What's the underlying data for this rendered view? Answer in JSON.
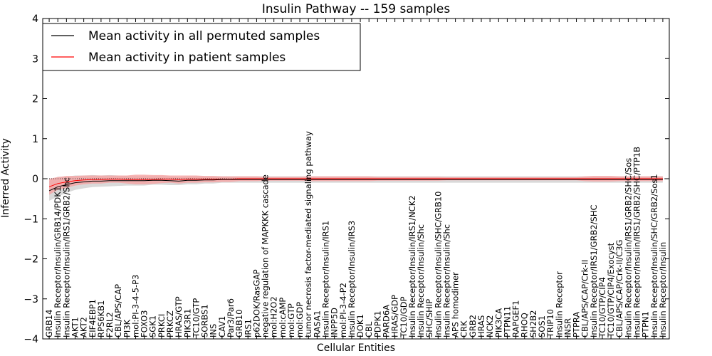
{
  "chart_data": {
    "type": "line",
    "title": "Insulin Pathway -- 159 samples",
    "xlabel": "Cellular Entities",
    "ylabel": "Inferred Activity",
    "ylim": [
      -4,
      4
    ],
    "yticks": [
      "4",
      "3",
      "2",
      "1",
      "0",
      "−1",
      "−2",
      "−3",
      "−4"
    ],
    "grid": false,
    "legend_position": "top-left",
    "categories": [
      "GRB14",
      "Insulin Receptor/Insulin/GRB14/PDK1",
      "Insulin Receptor/Insulin/IRS1/GRB2/Shc",
      "AKT1",
      "AKT2",
      "EIF4EBP1",
      "RPS6KB1",
      "F2RL2",
      "CBL/APS/CAP",
      "PI3K",
      "mol:PI-3-4-5-P3",
      "FOXO3",
      "SGK1",
      "PRKCI",
      "PRKCZ",
      "HRAS/GTP",
      "PIK3R1",
      "TC10/GTP",
      "SORBS1",
      "INS",
      "CAV1",
      "Par3/Par6",
      "GRB10",
      "IRS1",
      "p62DOK/RasGAP",
      "negative regulation of MAPKKK cascade",
      "mol:H2O2",
      "mol:cAMP",
      "mol:GTP",
      "mol:GDP",
      "tumor necrosis factor-mediated signaling pathway",
      "RASA1",
      "Insulin Receptor/Insulin/IRS1",
      "INPP5D",
      "mol:PI-3-4-P2",
      "Insulin Receptor/Insulin/IRS3",
      "DOK1",
      "CBL",
      "PDPK1",
      "PARD6A",
      "HRAS/GDP",
      "TC10/GDP",
      "Insulin Receptor/Insulin/IRS1/NCK2",
      "Insulin Receptor/Insulin/Shc",
      "SHC/SHIP",
      "Insulin Receptor/Insulin/SHC/GRB10",
      "Insulin Receptor/Insulin/Shc",
      "APS homodimer",
      "CRK",
      "GRB2",
      "HRAS",
      "NCK2",
      "PIK3CA",
      "PTPN11",
      "RAPGEF1",
      "RHOQ",
      "SH2B2",
      "SOS1",
      "TRIP10",
      "Insulin Receptor",
      "INSR",
      "PTPRA",
      "CBL/APS/CAP/Crk-II",
      "Insulin Receptor/IRS1/GRB2/SHC",
      "TC10/GTP/CIP4",
      "TC10/GTP/CIP4/Exocyst",
      "CBL/APS/CAP/Crk-II/C3G",
      "Insulin Receptor/Insulin/IRS1/GRB2/SHC/Sos",
      "Insulin Receptor/Insulin/IRS1/GRB2/SHC/PTP1B",
      "PTPN1",
      "Insulin Receptor/Insulin/SHC/GRB2/Sos1",
      "Insulin Receptor/Insulin"
    ],
    "series": [
      {
        "name": "Mean activity in all permuted samples",
        "color": "#000000",
        "band_color": "#cccccc",
        "values": [
          -0.3,
          -0.2,
          -0.15,
          -0.1,
          -0.08,
          -0.06,
          -0.06,
          -0.05,
          -0.05,
          -0.05,
          -0.05,
          -0.05,
          -0.04,
          -0.04,
          -0.05,
          -0.06,
          -0.04,
          -0.04,
          -0.03,
          -0.03,
          -0.02,
          -0.02,
          -0.02,
          -0.02,
          -0.02,
          -0.02,
          -0.02,
          -0.02,
          -0.02,
          -0.02,
          -0.02,
          -0.02,
          -0.02,
          -0.02,
          -0.02,
          -0.02,
          -0.02,
          -0.02,
          -0.02,
          -0.02,
          -0.02,
          -0.02,
          -0.02,
          -0.02,
          -0.02,
          -0.02,
          -0.02,
          -0.02,
          -0.02,
          -0.02,
          -0.02,
          -0.02,
          -0.02,
          -0.02,
          -0.02,
          -0.02,
          -0.02,
          -0.02,
          -0.02,
          -0.02,
          -0.02,
          -0.02,
          -0.02,
          -0.02,
          -0.02,
          -0.02,
          -0.02,
          -0.02,
          -0.02,
          -0.02,
          -0.02,
          -0.02
        ],
        "band": [
          0.25,
          0.25,
          0.2,
          0.18,
          0.16,
          0.15,
          0.14,
          0.14,
          0.13,
          0.12,
          0.12,
          0.12,
          0.11,
          0.11,
          0.11,
          0.1,
          0.1,
          0.1,
          0.09,
          0.09,
          0.08,
          0.08,
          0.08,
          0.08,
          0.08,
          0.08,
          0.08,
          0.08,
          0.08,
          0.08,
          0.08,
          0.08,
          0.08,
          0.08,
          0.08,
          0.08,
          0.08,
          0.08,
          0.08,
          0.08,
          0.08,
          0.08,
          0.08,
          0.08,
          0.08,
          0.08,
          0.08,
          0.08,
          0.08,
          0.08,
          0.08,
          0.08,
          0.08,
          0.08,
          0.08,
          0.08,
          0.08,
          0.08,
          0.08,
          0.08,
          0.08,
          0.08,
          0.08,
          0.08,
          0.08,
          0.08,
          0.08,
          0.08,
          0.08,
          0.08,
          0.08,
          0.08
        ]
      },
      {
        "name": "Mean activity in patient samples",
        "color": "#ff0000",
        "band_color": "#f5a3a3",
        "values": [
          -0.2,
          -0.12,
          -0.08,
          -0.05,
          -0.03,
          -0.02,
          -0.02,
          -0.01,
          -0.01,
          -0.02,
          -0.02,
          -0.02,
          -0.02,
          -0.01,
          -0.01,
          -0.02,
          -0.01,
          -0.01,
          -0.01,
          -0.01,
          -0.01,
          -0.01,
          0,
          0,
          0,
          0,
          0,
          0,
          0,
          0,
          0,
          0,
          0,
          0,
          0,
          0,
          0,
          0,
          0,
          0,
          0,
          0,
          0,
          0,
          0,
          0,
          0,
          0,
          0,
          0,
          0,
          0,
          0,
          0,
          0,
          0,
          0,
          0,
          0,
          0,
          0,
          0,
          0,
          0,
          0,
          0,
          0,
          0,
          0,
          0,
          0,
          0
        ],
        "band": [
          0.2,
          0.16,
          0.15,
          0.12,
          0.11,
          0.1,
          0.1,
          0.09,
          0.09,
          0.1,
          0.12,
          0.12,
          0.11,
          0.1,
          0.09,
          0.1,
          0.09,
          0.09,
          0.08,
          0.08,
          0.07,
          0.07,
          0.06,
          0.06,
          0.06,
          0.05,
          0.05,
          0.05,
          0.05,
          0.05,
          0.06,
          0.06,
          0.06,
          0.06,
          0.06,
          0.06,
          0.06,
          0.06,
          0.05,
          0.05,
          0.05,
          0.05,
          0.05,
          0.05,
          0.05,
          0.05,
          0.04,
          0.04,
          0.04,
          0.04,
          0.04,
          0.04,
          0.04,
          0.04,
          0.04,
          0.04,
          0.04,
          0.04,
          0.04,
          0.04,
          0.04,
          0.04,
          0.06,
          0.07,
          0.07,
          0.07,
          0.06,
          0.06,
          0.06,
          0.06,
          0.06,
          0.06
        ]
      }
    ]
  }
}
